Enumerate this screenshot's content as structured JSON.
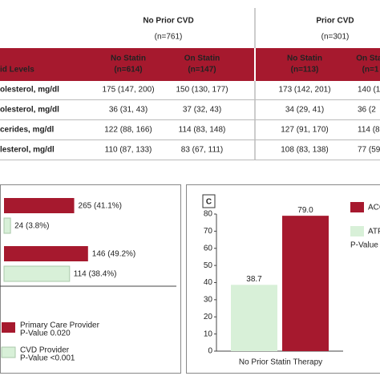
{
  "header": {
    "groups": [
      {
        "title": "No Prior CVD",
        "n": "(n=761)"
      },
      {
        "title": "Prior CVD",
        "n": "(n=301)"
      }
    ]
  },
  "table": {
    "columns": [
      [
        "id Levels"
      ],
      [
        "No Statin",
        "(n=614)"
      ],
      [
        "On Statin",
        "(n=147)"
      ],
      [
        "No Statin",
        "(n=113)"
      ],
      [
        "On Stat",
        "(n=1"
      ]
    ],
    "rows": [
      [
        "olesterol, mg/dl",
        "175 (147, 200)",
        "150 (130, 177)",
        "173 (142, 201)",
        "140 (1"
      ],
      [
        "olesterol, mg/dl",
        "36 (31, 43)",
        "37 (32, 43)",
        "34 (29, 41)",
        "36 (2"
      ],
      [
        "cerides, mg/dl",
        "122 (88, 166)",
        "114 (83, 148)",
        "127 (91, 170)",
        "114 (8"
      ],
      [
        "lesterol, mg/dl",
        "110 (87, 133)",
        "83 (67, 111)",
        "108 (83, 138)",
        "77 (59"
      ]
    ]
  },
  "chart_data": [
    {
      "type": "bar",
      "orientation": "horizontal",
      "categories": [
        null,
        null
      ],
      "xlim": [
        0,
        100
      ],
      "series": [
        {
          "name": "Primary Care Provider",
          "note": "P-Value 0.020",
          "color": "#a6192e",
          "values": [
            41.1,
            49.2
          ],
          "value_labels": [
            "265 (41.1%)",
            "146 (49.2%)"
          ]
        },
        {
          "name": "CVD Provider",
          "note": "P-Value <0.001",
          "color": "#d8f0d8",
          "values": [
            3.8,
            38.4
          ],
          "value_labels": [
            "24 (3.8%)",
            "114 (38.4%)"
          ]
        }
      ]
    },
    {
      "type": "bar",
      "panel_label": "C",
      "categories": [
        "No Prior Statin Therapy"
      ],
      "ylim": [
        0,
        80
      ],
      "yticks": [
        0,
        10,
        20,
        30,
        40,
        50,
        60,
        70,
        80
      ],
      "note": "P-Value <",
      "series": [
        {
          "name": "ACC",
          "color": "#a6192e",
          "values": [
            79.0
          ],
          "value_labels": [
            "79.0"
          ]
        },
        {
          "name": "ATP",
          "color": "#d8f0d8",
          "values": [
            38.7
          ],
          "value_labels": [
            "38.7"
          ]
        }
      ]
    }
  ]
}
